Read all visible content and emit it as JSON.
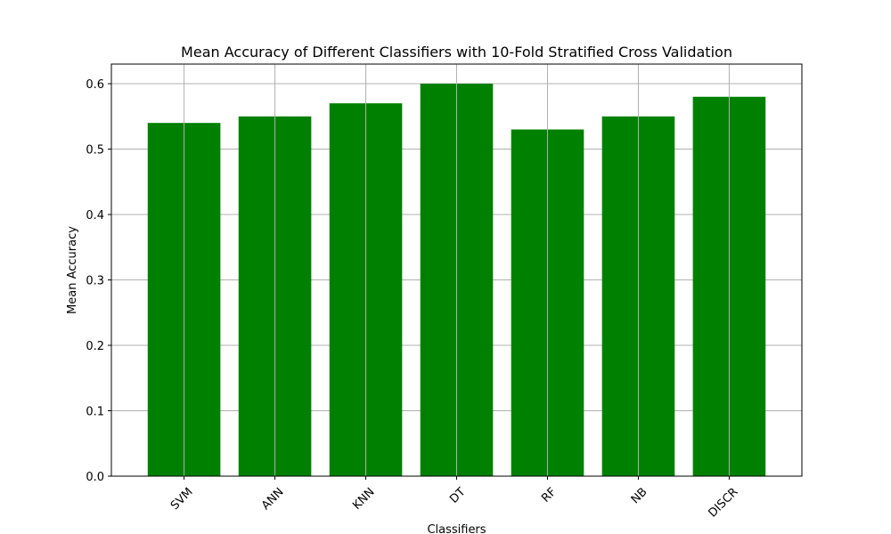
{
  "chart_data": {
    "type": "bar",
    "title": "Mean Accuracy of Different Classifiers with 10-Fold Stratified Cross Validation",
    "xlabel": "Classifiers",
    "ylabel": "Mean Accuracy",
    "categories": [
      "SVM",
      "ANN",
      "KNN",
      "DT",
      "RF",
      "NB",
      "DISCR"
    ],
    "values": [
      0.54,
      0.55,
      0.57,
      0.6,
      0.53,
      0.55,
      0.58
    ],
    "ylim": [
      0,
      0.63
    ],
    "yticks": [
      0.0,
      0.1,
      0.2,
      0.3,
      0.4,
      0.5,
      0.6
    ],
    "ytick_labels": [
      "0.0",
      "0.1",
      "0.2",
      "0.3",
      "0.4",
      "0.5",
      "0.6"
    ],
    "x_tick_rotation_deg": 45,
    "grid": true,
    "bar_color": "#008000",
    "grid_color": "#b0b0b0",
    "legend": false
  }
}
